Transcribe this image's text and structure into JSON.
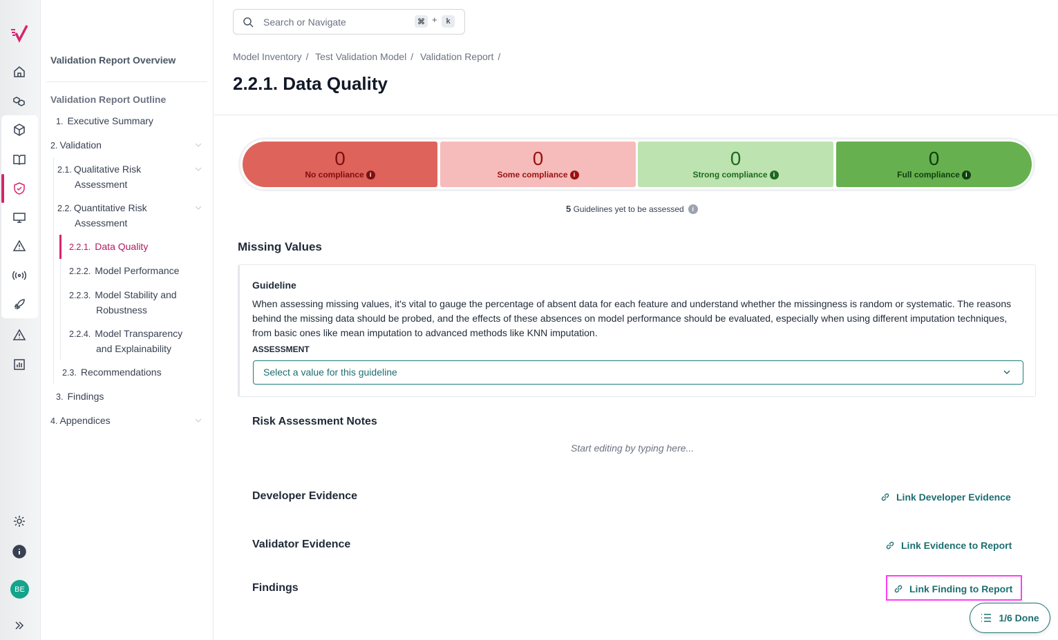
{
  "rail": {
    "avatar": "BE",
    "icons": [
      "logo",
      "home-icon",
      "models-icon",
      "cube-icon",
      "book-icon",
      "shield-check-icon",
      "monitor-icon",
      "warning-icon",
      "signal-icon",
      "rocket-icon",
      "alert-icon",
      "chart-icon",
      "gear-icon",
      "info-icon",
      "expand-icon"
    ]
  },
  "outline": {
    "overview": "Validation Report Overview",
    "title": "Validation Report Outline",
    "items": [
      {
        "num": "1.",
        "label": "Executive Summary"
      },
      {
        "num": "2.",
        "label": "Validation"
      },
      {
        "num": "2.1.",
        "label": "Qualitative Risk",
        "label2": "Assessment"
      },
      {
        "num": "2.2.",
        "label": "Quantitative Risk",
        "label2": "Assessment"
      },
      {
        "num": "2.2.1.",
        "label": "Data Quality"
      },
      {
        "num": "2.2.2.",
        "label": "Model Performance"
      },
      {
        "num": "2.2.3.",
        "label": "Model Stability and",
        "label2": "Robustness"
      },
      {
        "num": "2.2.4.",
        "label": "Model Transparency",
        "label2": "and Explainability"
      },
      {
        "num": "2.3.",
        "label": "Recommendations"
      },
      {
        "num": "3.",
        "label": "Findings"
      },
      {
        "num": "4.",
        "label": "Appendices"
      }
    ]
  },
  "search": {
    "placeholder": "Search or Navigate",
    "k1": "⌘",
    "plus": "+",
    "k2": "k"
  },
  "breadcrumb": [
    "Model Inventory",
    "/",
    "Test Validation Model",
    "/",
    "Validation Report",
    "/"
  ],
  "title": "2.2.1. Data Quality",
  "compliance": [
    {
      "value": "0",
      "label": "No compliance",
      "bg": "#de635b",
      "fg": "#7f0f0f"
    },
    {
      "value": "0",
      "label": "Some compliance",
      "bg": "#f6bcbb",
      "fg": "#9b1111"
    },
    {
      "value": "0",
      "label": "Strong compliance",
      "bg": "#bde3b0",
      "fg": "#1e6a1e"
    },
    {
      "value": "0",
      "label": "Full compliance",
      "bg": "#67b04f",
      "fg": "#0f3f0f"
    }
  ],
  "pending": {
    "count": "5",
    "text": "Guidelines yet to be assessed"
  },
  "section": "Missing Values",
  "guideline": {
    "label": "Guideline",
    "text": "When assessing missing values, it's vital to gauge the percentage of absent data for each feature and understand whether the missingness is random or systematic. The reasons behind the missing data should be probed, and the effects of these absences on model performance should be evaluated, especially when using different imputation techniques, from basic ones like mean imputation to advanced methods like KNN imputation.",
    "assessment_label": "ASSESSMENT",
    "select_placeholder": "Select a value for this guideline"
  },
  "notes": {
    "label": "Risk Assessment Notes",
    "placeholder": "Start editing by typing here..."
  },
  "developer": {
    "label": "Developer Evidence",
    "link": "Link Developer Evidence"
  },
  "validator": {
    "label": "Validator Evidence",
    "link": "Link Evidence to Report"
  },
  "findings": {
    "label": "Findings",
    "link": "Link Finding to Report"
  },
  "progress": {
    "label": "1/6 Done"
  }
}
